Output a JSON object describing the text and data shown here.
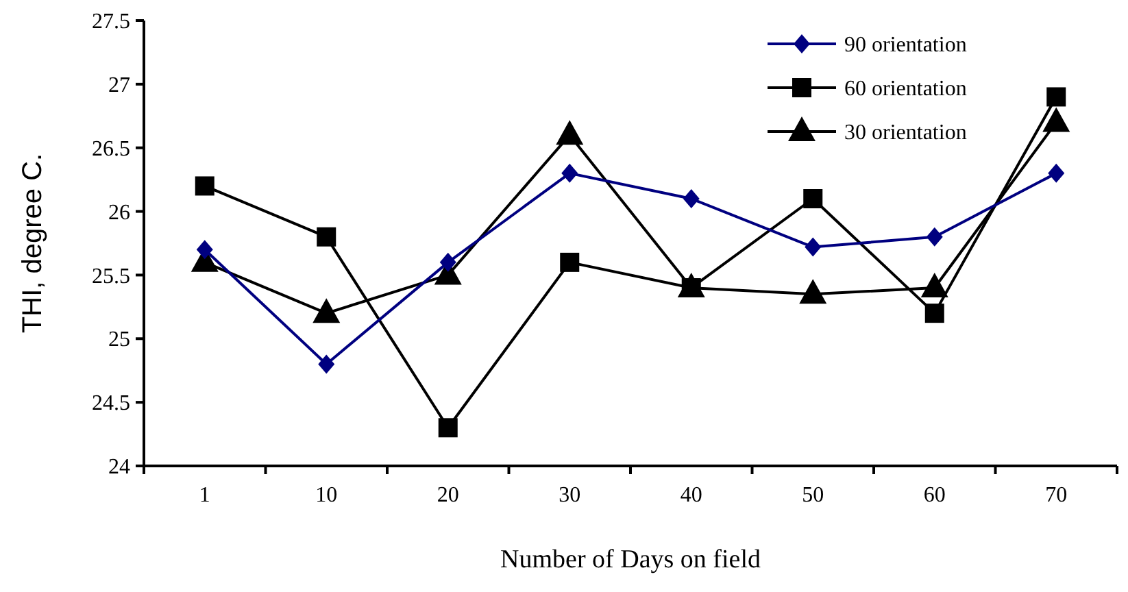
{
  "chart_data": {
    "type": "line",
    "xlabel": "Number of Days on field",
    "ylabel": "THI, degree C.",
    "categories": [
      "1",
      "10",
      "20",
      "30",
      "40",
      "50",
      "60",
      "70"
    ],
    "ylim": [
      24,
      27.5
    ],
    "yticks": [
      24,
      24.5,
      25,
      25.5,
      26,
      26.5,
      27,
      27.5
    ],
    "grid": false,
    "legend": "top right",
    "line_style": "solid",
    "series": [
      {
        "name": "90 orientation",
        "color": "#000080",
        "marker": "diamond",
        "values": [
          25.7,
          24.8,
          25.6,
          26.3,
          26.1,
          25.72,
          25.8,
          26.3
        ]
      },
      {
        "name": "60 orientation",
        "color": "#000000",
        "marker": "square",
        "values": [
          26.2,
          25.8,
          24.3,
          25.6,
          25.4,
          26.1,
          25.2,
          26.9
        ]
      },
      {
        "name": "30 orientation",
        "color": "#000000",
        "marker": "triangle",
        "values": [
          25.6,
          25.2,
          25.5,
          26.6,
          25.4,
          25.35,
          25.4,
          26.7
        ]
      }
    ]
  }
}
